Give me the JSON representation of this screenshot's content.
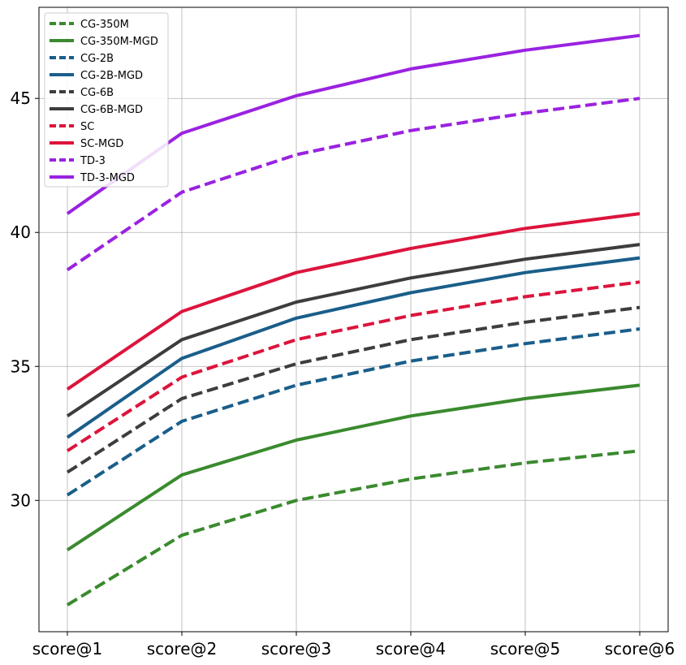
{
  "chart_data": {
    "type": "line",
    "title": "",
    "xlabel": "",
    "ylabel": "",
    "categories": [
      "score@1",
      "score@2",
      "score@3",
      "score@4",
      "score@5",
      "score@6"
    ],
    "yticks": [
      30,
      35,
      40,
      45
    ],
    "ylim": [
      25.1,
      48.4
    ],
    "grid": true,
    "legend_position": "top-left",
    "series": [
      {
        "name": "CG-350M",
        "color": "#3a8a2e",
        "dash": "dashed",
        "values": [
          26.1,
          28.7,
          30.0,
          30.8,
          31.4,
          31.85
        ]
      },
      {
        "name": "CG-350M-MGD",
        "color": "#3a8a2e",
        "dash": "solid",
        "values": [
          28.15,
          30.95,
          32.25,
          33.15,
          33.8,
          34.3
        ]
      },
      {
        "name": "CG-2B",
        "color": "#1a5e8a",
        "dash": "dashed",
        "values": [
          30.2,
          32.95,
          34.3,
          35.2,
          35.85,
          36.4
        ]
      },
      {
        "name": "CG-2B-MGD",
        "color": "#1a5e8a",
        "dash": "solid",
        "values": [
          32.35,
          35.3,
          36.8,
          37.75,
          38.5,
          39.05
        ]
      },
      {
        "name": "CG-6B",
        "color": "#3d3d3d",
        "dash": "dashed",
        "values": [
          31.05,
          33.8,
          35.1,
          36.0,
          36.65,
          37.2
        ]
      },
      {
        "name": "CG-6B-MGD",
        "color": "#3d3d3d",
        "dash": "solid",
        "values": [
          33.15,
          36.0,
          37.4,
          38.3,
          39.0,
          39.55
        ]
      },
      {
        "name": "SC",
        "color": "#dc143c",
        "dash": "dashed",
        "values": [
          31.85,
          34.6,
          36.0,
          36.9,
          37.6,
          38.15
        ]
      },
      {
        "name": "SC-MGD",
        "color": "#dc143c",
        "dash": "solid",
        "values": [
          34.15,
          37.05,
          38.5,
          39.4,
          40.15,
          40.7
        ]
      },
      {
        "name": "TD-3",
        "color": "#9a22e0",
        "dash": "dashed",
        "values": [
          38.6,
          41.5,
          42.9,
          43.8,
          44.45,
          45.0
        ]
      },
      {
        "name": "TD-3-MGD",
        "color": "#9a22e0",
        "dash": "solid",
        "values": [
          40.7,
          43.7,
          45.1,
          46.1,
          46.8,
          47.35
        ]
      }
    ]
  }
}
